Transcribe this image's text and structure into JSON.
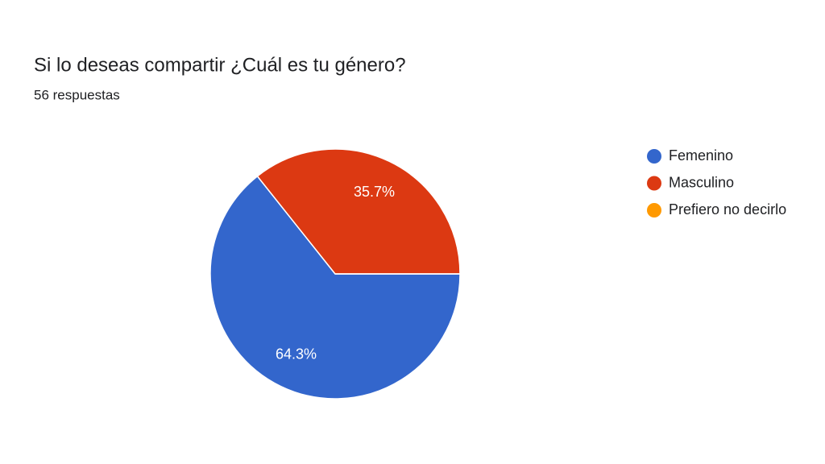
{
  "chart_data": {
    "type": "pie",
    "title": "Si lo deseas compartir ¿Cuál es tu género?",
    "subtitle": "56 respuestas",
    "categories": [
      "Femenino",
      "Masculino",
      "Prefiero no decirlo"
    ],
    "values": [
      64.3,
      35.7,
      0
    ],
    "value_labels": [
      "64.3%",
      "35.7%",
      null
    ],
    "colors": [
      "#3366cc",
      "#dc3912",
      "#ff9900"
    ],
    "legend": "right"
  }
}
